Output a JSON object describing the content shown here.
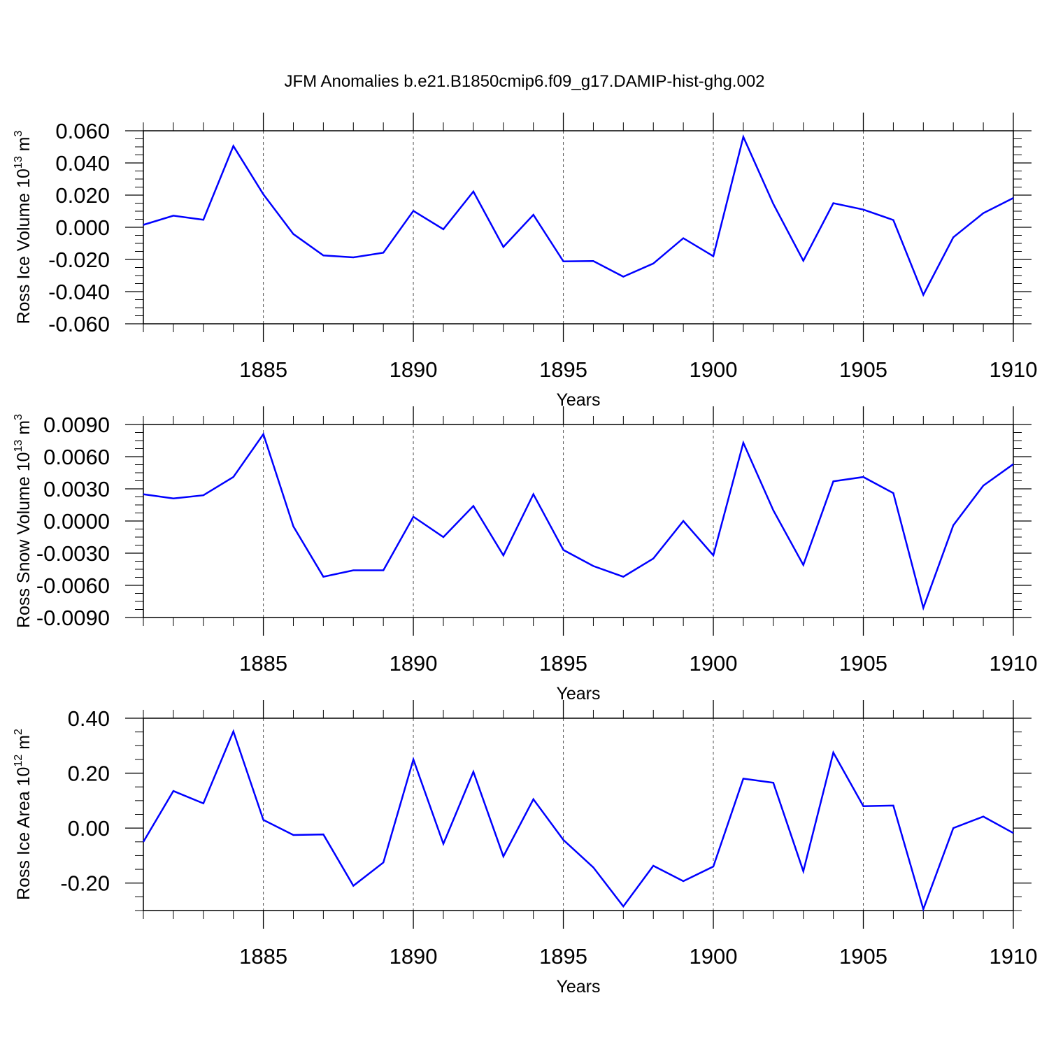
{
  "title": "JFM Anomalies b.e21.B1850cmip6.f09_g17.DAMIP-hist-ghg.002",
  "line_color": "#0000ff",
  "chart_data": [
    {
      "type": "line",
      "ylabel": "Ross Ice Volume 10",
      "ylabel_sup": "13",
      "ylabel_unit": "m",
      "ylabel_unit_sup": "3",
      "xlabel": "Years",
      "xlim": [
        1881,
        1910
      ],
      "ylim": [
        -0.06,
        0.06
      ],
      "xticks": [
        1885,
        1890,
        1895,
        1900,
        1905,
        1910
      ],
      "xtick_labels": [
        "1885",
        "1890",
        "1895",
        "1900",
        "1905",
        "1910"
      ],
      "yticks": [
        0.06,
        0.04,
        0.02,
        0.0,
        -0.02,
        -0.04,
        -0.06
      ],
      "ytick_labels": [
        "0.060",
        "0.040",
        "0.020",
        "0.000",
        "-0.020",
        "-0.040",
        "-0.060"
      ],
      "x": [
        1881,
        1882,
        1883,
        1884,
        1885,
        1886,
        1887,
        1888,
        1889,
        1890,
        1891,
        1892,
        1893,
        1894,
        1895,
        1896,
        1897,
        1898,
        1899,
        1900,
        1901,
        1902,
        1903,
        1904,
        1905,
        1906,
        1907,
        1908,
        1909,
        1910
      ],
      "values": [
        0.0015,
        0.0072,
        0.0047,
        0.0505,
        0.0205,
        -0.0042,
        -0.0175,
        -0.0187,
        -0.0158,
        0.0102,
        -0.0012,
        0.0222,
        -0.0122,
        0.0078,
        -0.0212,
        -0.021,
        -0.0307,
        -0.0225,
        -0.0068,
        -0.018,
        0.0562,
        0.0145,
        -0.0208,
        0.015,
        0.011,
        0.0045,
        -0.042,
        -0.0062,
        0.0088,
        0.0182
      ]
    },
    {
      "type": "line",
      "ylabel": "Ross Snow Volume 10",
      "ylabel_sup": "13",
      "ylabel_unit": "m",
      "ylabel_unit_sup": "3",
      "xlabel": "Years",
      "xlim": [
        1881,
        1910
      ],
      "ylim": [
        -0.009,
        0.009
      ],
      "xticks": [
        1885,
        1890,
        1895,
        1900,
        1905,
        1910
      ],
      "xtick_labels": [
        "1885",
        "1890",
        "1895",
        "1900",
        "1905",
        "1910"
      ],
      "yticks": [
        0.009,
        0.006,
        0.003,
        0.0,
        -0.003,
        -0.006,
        -0.009
      ],
      "ytick_labels": [
        "0.0090",
        "0.0060",
        "0.0030",
        "0.0000",
        "-0.0030",
        "-0.0060",
        "-0.0090"
      ],
      "x": [
        1881,
        1882,
        1883,
        1884,
        1885,
        1886,
        1887,
        1888,
        1889,
        1890,
        1891,
        1892,
        1893,
        1894,
        1895,
        1896,
        1897,
        1898,
        1899,
        1900,
        1901,
        1902,
        1903,
        1904,
        1905,
        1906,
        1907,
        1908,
        1909,
        1910
      ],
      "values": [
        0.0025,
        0.0021,
        0.0024,
        0.0041,
        0.0081,
        -0.0005,
        -0.0052,
        -0.0046,
        -0.0046,
        0.0004,
        -0.0015,
        0.0014,
        -0.0032,
        0.0025,
        -0.0027,
        -0.0042,
        -0.0052,
        -0.0035,
        0.0,
        -0.0032,
        0.0073,
        0.001,
        -0.0041,
        0.0037,
        0.0041,
        0.0026,
        -0.0081,
        -0.0004,
        0.0033,
        0.0053
      ]
    },
    {
      "type": "line",
      "ylabel": "Ross Ice Area 10",
      "ylabel_sup": "12",
      "ylabel_unit": "m",
      "ylabel_unit_sup": "2",
      "xlabel": "Years",
      "xlim": [
        1881,
        1910
      ],
      "ylim": [
        -0.3,
        0.4
      ],
      "xticks": [
        1885,
        1890,
        1895,
        1900,
        1905,
        1910
      ],
      "xtick_labels": [
        "1885",
        "1890",
        "1895",
        "1900",
        "1905",
        "1910"
      ],
      "yticks": [
        0.4,
        0.2,
        0.0,
        -0.2
      ],
      "ytick_labels": [
        "0.40",
        "0.20",
        "0.00",
        "-0.20"
      ],
      "x": [
        1881,
        1882,
        1883,
        1884,
        1885,
        1886,
        1887,
        1888,
        1889,
        1890,
        1891,
        1892,
        1893,
        1894,
        1895,
        1896,
        1897,
        1898,
        1899,
        1900,
        1901,
        1902,
        1903,
        1904,
        1905,
        1906,
        1907,
        1908,
        1909,
        1910
      ],
      "values": [
        -0.05,
        0.135,
        0.09,
        0.352,
        0.03,
        -0.025,
        -0.023,
        -0.21,
        -0.125,
        0.25,
        -0.057,
        0.205,
        -0.103,
        0.105,
        -0.043,
        -0.143,
        -0.285,
        -0.137,
        -0.193,
        -0.14,
        0.18,
        0.165,
        -0.157,
        0.275,
        0.08,
        0.082,
        -0.295,
        0.0,
        0.042,
        -0.018
      ]
    }
  ]
}
